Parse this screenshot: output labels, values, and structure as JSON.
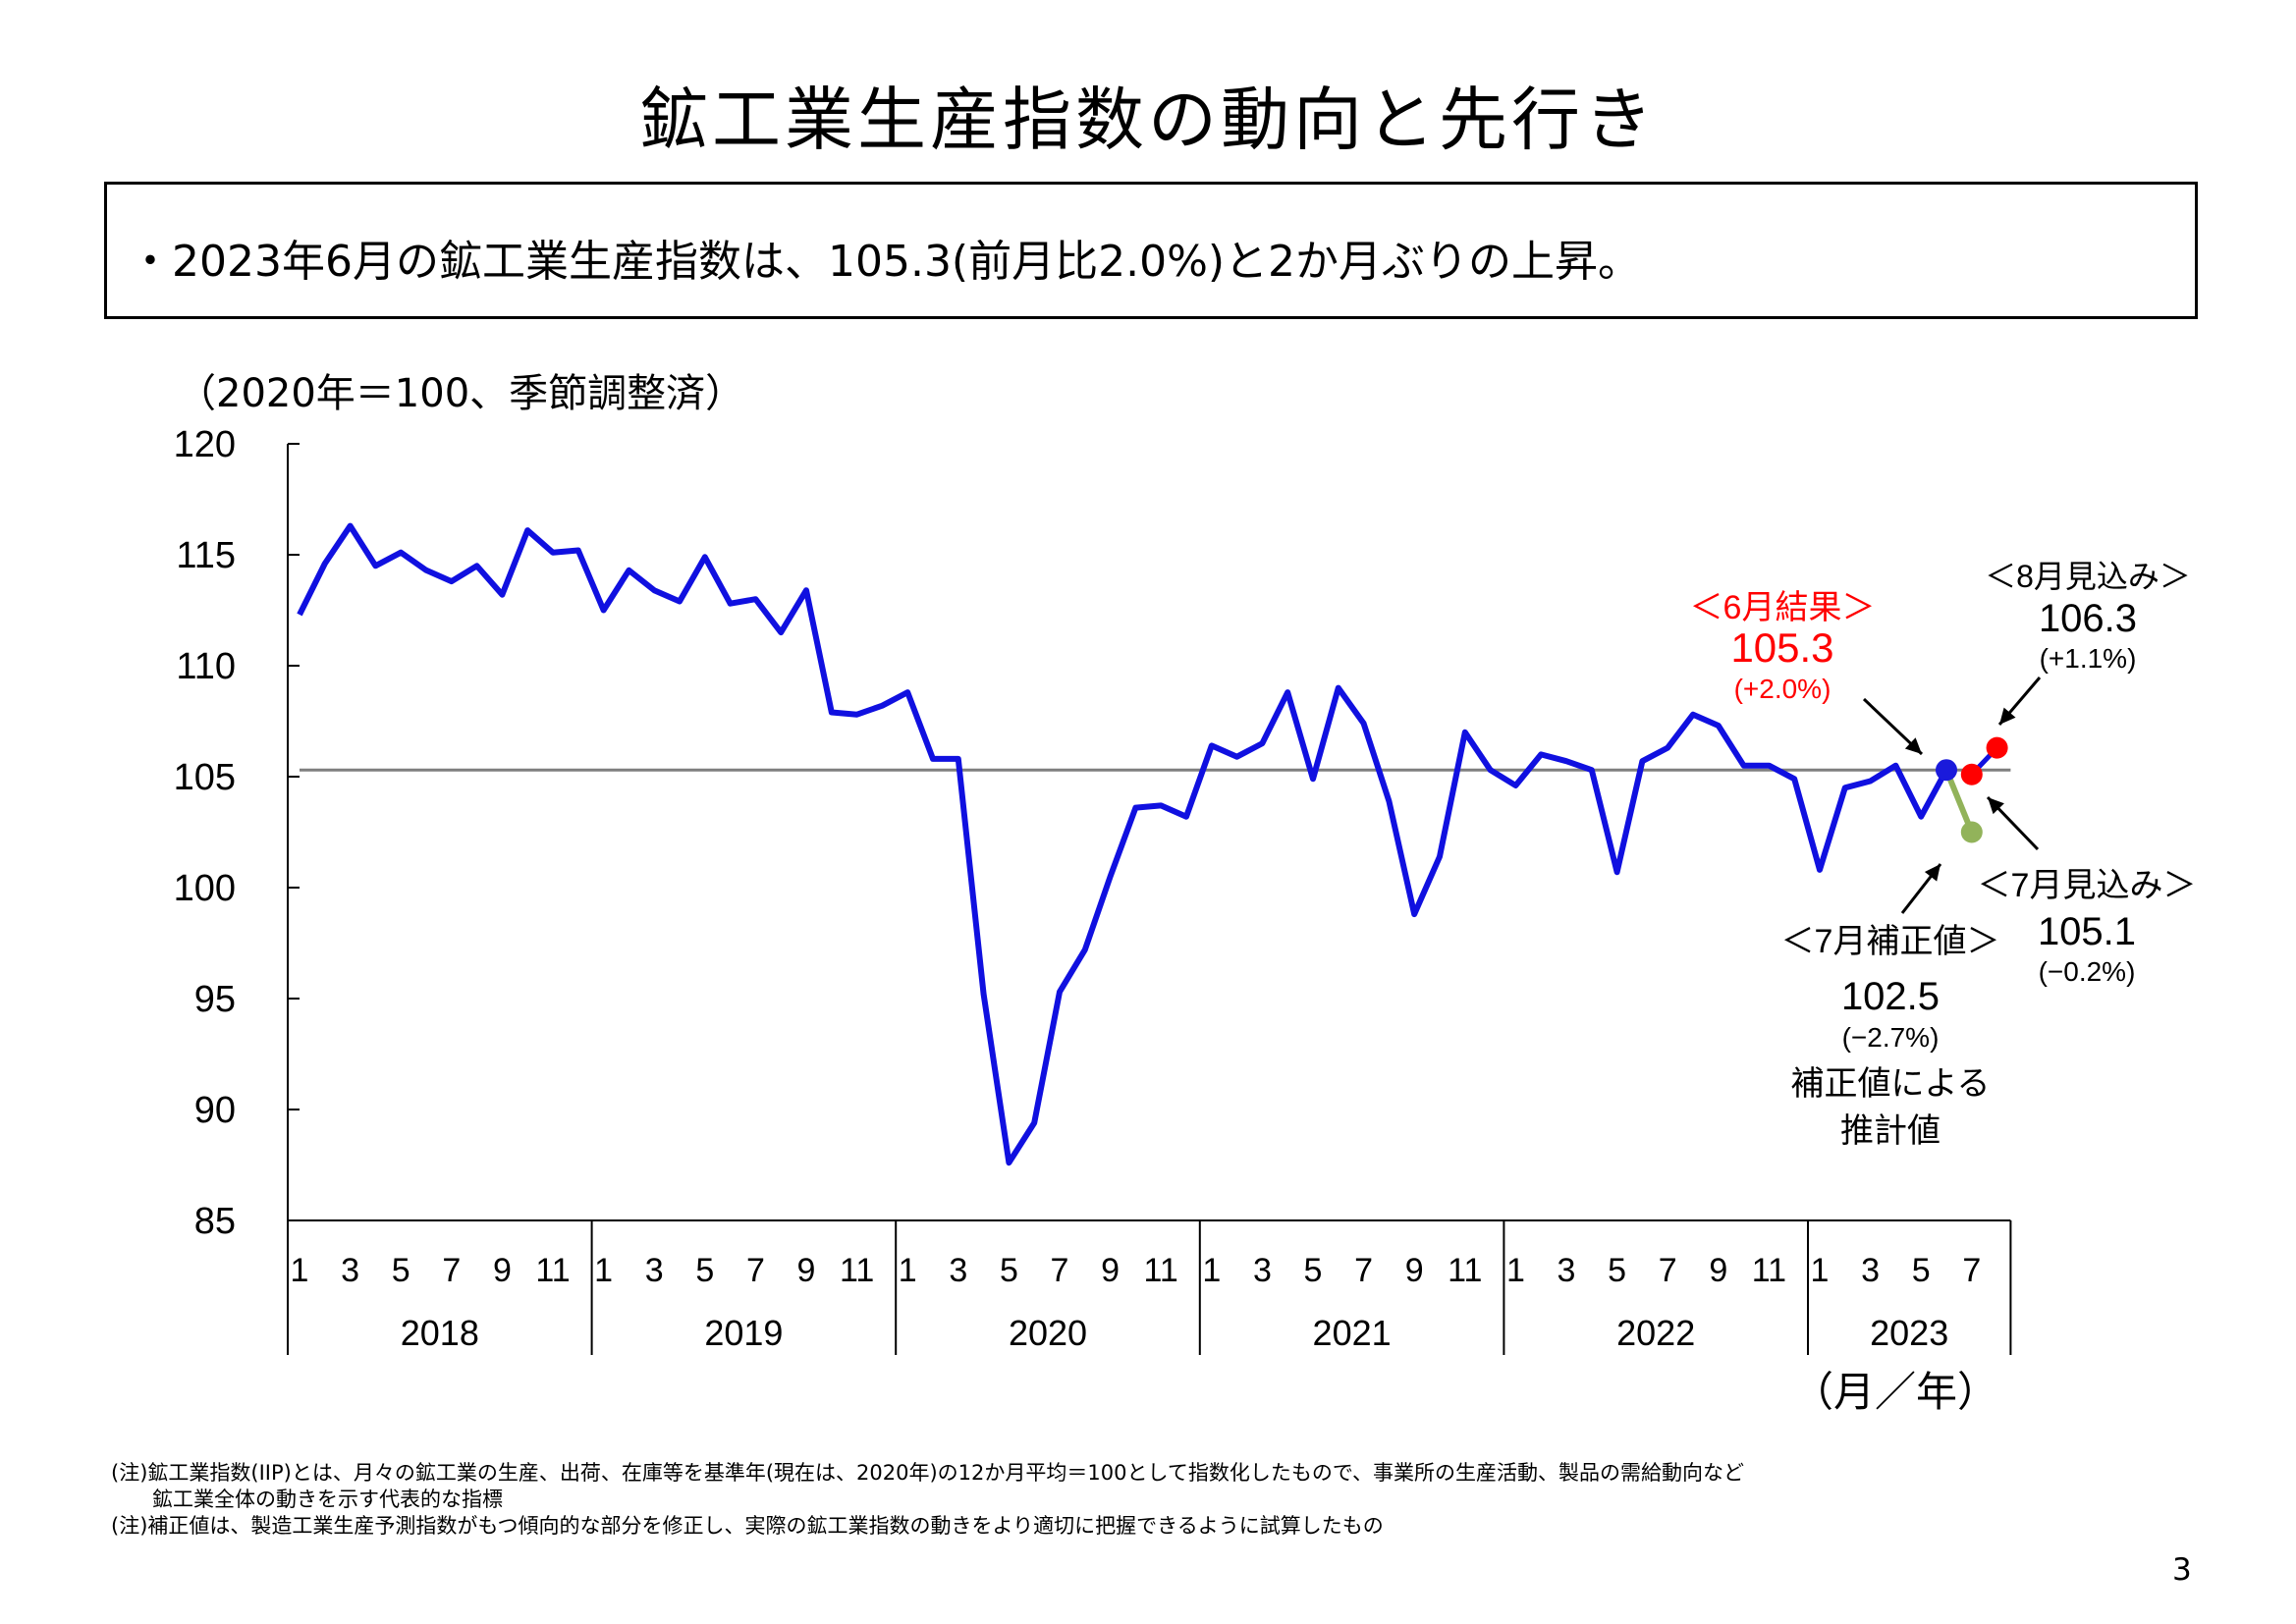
{
  "title": "鉱工業生産指数の動向と先行き",
  "summary": "・2023年6月の鉱工業生産指数は、105.3(前月比2.0%)と2か月ぶりの上昇。",
  "unit_label": "（2020年＝100、季節調整済）",
  "notes": [
    "(注)鉱工業指数(IIP)とは、月々の鉱工業の生産、出荷、在庫等を基準年(現在は、2020年)の12か月平均＝100として指数化したもので、事業所の生産活動、製品の需給動向など",
    "　　鉱工業全体の動きを示す代表的な指標",
    "(注)補正値は、製造工業生産予測指数がもつ傾向的な部分を修正し、実際の鉱工業指数の動きをより適切に把握できるように試算したもの"
  ],
  "page_number": "3",
  "chart_data": {
    "type": "line",
    "ylim": [
      85,
      120
    ],
    "yticks": [
      85,
      90,
      95,
      100,
      105,
      110,
      115,
      120
    ],
    "month_labels": [
      "1",
      "3",
      "5",
      "7",
      "9",
      "11"
    ],
    "years": [
      "2018",
      "2019",
      "2020",
      "2021",
      "2022",
      "2023"
    ],
    "x_axis_unit": "（月／年）",
    "start": "2018-01",
    "values": [
      112.3,
      114.6,
      116.3,
      114.5,
      115.1,
      114.3,
      113.8,
      114.5,
      113.2,
      116.1,
      115.1,
      115.2,
      112.5,
      114.3,
      113.4,
      112.9,
      114.9,
      112.8,
      113.0,
      111.5,
      113.4,
      107.9,
      107.8,
      108.2,
      108.8,
      105.8,
      105.8,
      95.2,
      87.6,
      89.4,
      95.3,
      97.2,
      100.5,
      103.6,
      103.7,
      103.2,
      106.4,
      105.9,
      106.5,
      108.8,
      104.9,
      109.0,
      107.4,
      103.9,
      98.8,
      101.4,
      107.0,
      105.3,
      104.6,
      106.0,
      105.7,
      105.3,
      100.7,
      105.7,
      106.3,
      107.8,
      107.3,
      105.5,
      105.5,
      104.9,
      100.8,
      104.5,
      104.8,
      105.5,
      103.2,
      105.3
    ],
    "series_color": "#1010e0",
    "reference_line": {
      "value": 105.3,
      "color": "#7f7f7f"
    },
    "projections": {
      "actual_june": {
        "heading": "＜6月結果＞",
        "value": "105.3",
        "change": "(+2.0%)",
        "color": "#ff0000",
        "marker_color": "#1a1adb",
        "month": "2023-06",
        "y": 105.3
      },
      "july_forecast": {
        "heading": "＜7月見込み＞",
        "value": "105.1",
        "change": "(−0.2%)",
        "marker_color": "#ff0000",
        "month": "2023-07",
        "y": 105.1
      },
      "august_forecast": {
        "heading": "＜8月見込み＞",
        "value": "106.3",
        "change": "(+1.1%)",
        "marker_color": "#ff0000",
        "month": "2023-08",
        "y": 106.3
      },
      "july_corrected": {
        "heading": "＜7月補正値＞",
        "value": "102.5",
        "change": "(−2.7%)",
        "caption_line1": "補正値による",
        "caption_line2": "推計値",
        "marker_color": "#92b35a",
        "month": "2023-07",
        "y": 102.5
      }
    }
  }
}
